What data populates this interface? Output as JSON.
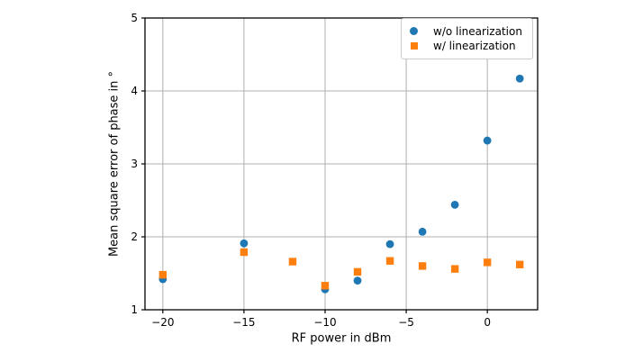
{
  "figure": {
    "background": "#ffffff"
  },
  "chart_data": {
    "type": "scatter",
    "title": "",
    "xlabel": "RF power in dBm",
    "ylabel": "Mean square error of phase in °",
    "xlim": [
      -21.1,
      3.1
    ],
    "ylim": [
      1,
      5
    ],
    "xticks": [
      -20,
      -15,
      -10,
      -5,
      0
    ],
    "xtick_labels": [
      "−20",
      "−15",
      "−10",
      "−5",
      "0"
    ],
    "yticks": [
      1,
      2,
      3,
      4,
      5
    ],
    "ytick_labels": [
      "1",
      "2",
      "3",
      "4",
      "5"
    ],
    "grid": true,
    "legend_position": "upper right",
    "series": [
      {
        "name": "w/o linearization",
        "marker": "circle",
        "color": "#1f77b4",
        "points": [
          [
            -20,
            1.42
          ],
          [
            -15,
            1.91
          ],
          [
            -10,
            1.28
          ],
          [
            -8,
            1.4
          ],
          [
            -6,
            1.9
          ],
          [
            -4,
            2.07
          ],
          [
            -2,
            2.44
          ],
          [
            0,
            3.32
          ],
          [
            2,
            4.17
          ]
        ]
      },
      {
        "name": "w/ linearization",
        "marker": "square",
        "color": "#ff7f0e",
        "points": [
          [
            -20,
            1.48
          ],
          [
            -15,
            1.79
          ],
          [
            -12,
            1.66
          ],
          [
            -10,
            1.33
          ],
          [
            -8,
            1.52
          ],
          [
            -6,
            1.67
          ],
          [
            -4,
            1.6
          ],
          [
            -2,
            1.56
          ],
          [
            0,
            1.65
          ],
          [
            2,
            1.62
          ]
        ]
      }
    ],
    "colors": {
      "grid": "#b0b0b0",
      "spine": "#000000",
      "tick_label": "#000000"
    }
  }
}
